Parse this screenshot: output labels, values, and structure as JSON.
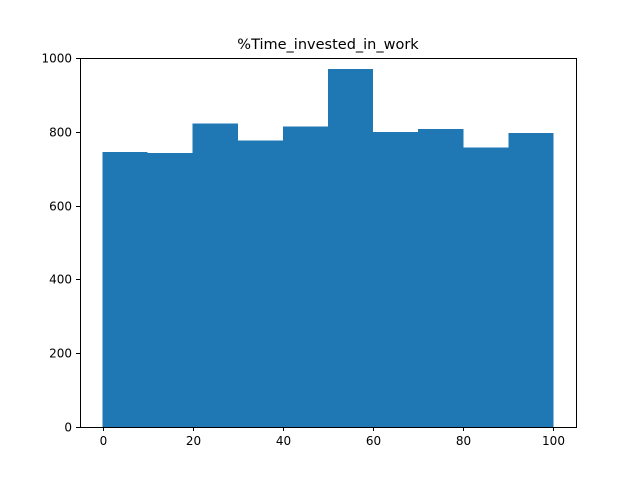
{
  "chart_data": {
    "type": "bar",
    "title": "%Time_invested_in_work",
    "xlabel": "",
    "ylabel": "",
    "xlim": [
      -5,
      105
    ],
    "ylim": [
      0,
      1000
    ],
    "grid": false,
    "legend": "none",
    "bar_color": "#1f77b4",
    "bins": [
      {
        "start": 0,
        "end": 10,
        "count": 745
      },
      {
        "start": 10,
        "end": 20,
        "count": 742
      },
      {
        "start": 20,
        "end": 30,
        "count": 822
      },
      {
        "start": 30,
        "end": 40,
        "count": 777
      },
      {
        "start": 40,
        "end": 50,
        "count": 815
      },
      {
        "start": 50,
        "end": 60,
        "count": 970
      },
      {
        "start": 60,
        "end": 70,
        "count": 800
      },
      {
        "start": 70,
        "end": 80,
        "count": 808
      },
      {
        "start": 80,
        "end": 90,
        "count": 758
      },
      {
        "start": 90,
        "end": 100,
        "count": 797
      }
    ],
    "x_ticks": [
      "0",
      "20",
      "40",
      "60",
      "80",
      "100"
    ],
    "y_ticks": [
      "0",
      "200",
      "400",
      "600",
      "800",
      "1000"
    ]
  }
}
